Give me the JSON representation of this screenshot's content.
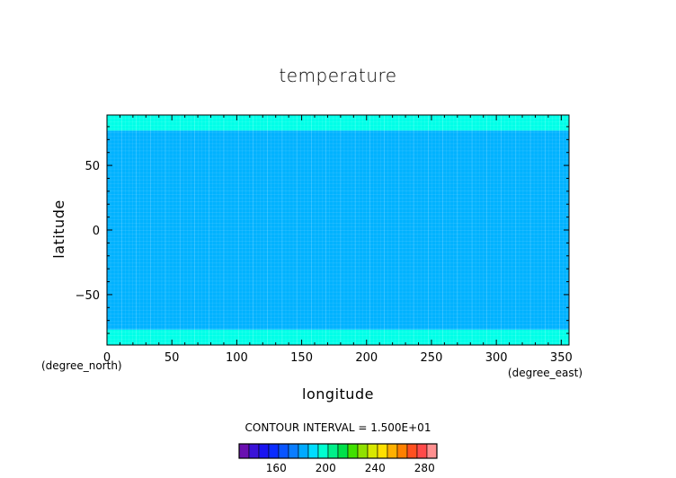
{
  "chart_data": {
    "type": "heatmap",
    "title": "temperature",
    "xlabel": "longitude",
    "ylabel": "latitude",
    "x_units": "(degree_east)",
    "y_units": "(degree_north)",
    "xlim": [
      0,
      356
    ],
    "ylim": [
      -89,
      89
    ],
    "x_ticks": [
      0,
      50,
      100,
      150,
      200,
      250,
      300,
      350
    ],
    "y_ticks": [
      -50,
      0,
      50
    ],
    "contour_interval_text": "CONTOUR INTERVAL = 1.500E+01",
    "colorbar": {
      "levels": [
        130,
        140,
        150,
        160,
        170,
        180,
        190,
        200,
        210,
        220,
        230,
        240,
        250,
        260,
        270,
        280,
        290
      ],
      "colors": [
        "#6a0fb0",
        "#3a12d8",
        "#1a14f0",
        "#0b2cff",
        "#0a55ff",
        "#0a7dff",
        "#00aaff",
        "#00ddff",
        "#00ffd0",
        "#00f08a",
        "#00e04a",
        "#40e000",
        "#90e000",
        "#d8e800",
        "#ffe000",
        "#ffb000",
        "#ff8000",
        "#ff5020",
        "#ff4a4a",
        "#ff9090"
      ],
      "tick_labels": [
        "160",
        "200",
        "240",
        "280"
      ]
    },
    "bands": [
      {
        "lat_min": -89,
        "lat_max": -77,
        "value": 200,
        "color": "#00ffe8"
      },
      {
        "lat_min": -77,
        "lat_max": 77,
        "value": 195,
        "color": "#00b2ff"
      },
      {
        "lat_min": 77,
        "lat_max": 89,
        "value": 200,
        "color": "#00ffe8"
      }
    ],
    "grid_lines": true
  }
}
